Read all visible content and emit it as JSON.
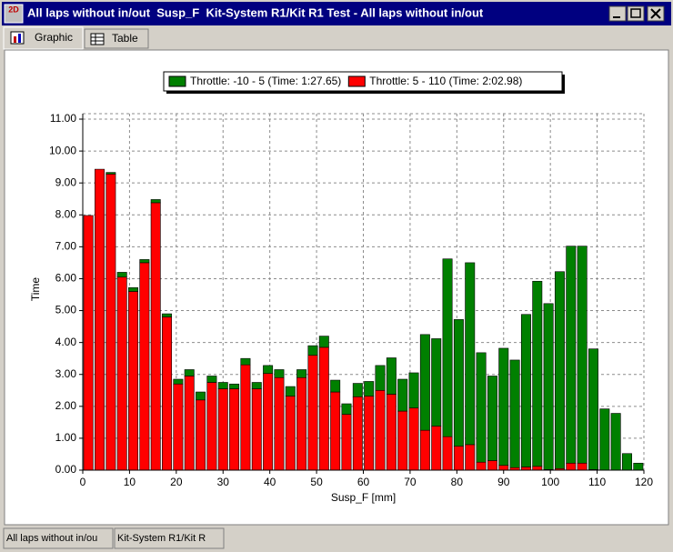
{
  "window": {
    "title": "All laps without in/out  Susp_F  Kit-System R1/Kit R1 Test - All laps without in/out",
    "tabs": [
      "Graphic",
      "Table"
    ],
    "status": [
      "All laps without in/ou",
      "Kit-System R1/Kit R"
    ]
  },
  "chart_data": {
    "type": "histogram",
    "stacked": true,
    "xlabel": "Susp_F [mm]",
    "ylabel": "Time",
    "bins": [
      0,
      2.4,
      4.8,
      7.2,
      9.6,
      12,
      14.4,
      16.8,
      19.2,
      21.6,
      24,
      26.4,
      28.8,
      31.2,
      33.6,
      36,
      38.4,
      40.8,
      43.2,
      45.6,
      48,
      50.4,
      52.8,
      55.2,
      57.6,
      60,
      62.4,
      64.8,
      67.2,
      69.6,
      72,
      74.4,
      76.8,
      79.2,
      81.6,
      84,
      86.4,
      88.8,
      91.2,
      93.6,
      96,
      98.4,
      100.8,
      103.2,
      105.6,
      108,
      110.4,
      112.8,
      115.2,
      117.6,
      120
    ],
    "series": [
      {
        "name": "Throttle: 5 - 110 (Time: 2:02.98)",
        "color": "#ff0000",
        "values": [
          7.98,
          9.43,
          9.28,
          6.05,
          5.6,
          6.5,
          8.38,
          4.8,
          2.7,
          2.95,
          2.2,
          2.75,
          2.55,
          2.55,
          3.3,
          2.55,
          3.03,
          2.9,
          2.32,
          2.9,
          3.6,
          3.85,
          2.45,
          1.75,
          2.3,
          2.32,
          2.5,
          2.38,
          1.85,
          1.95,
          1.25,
          1.38,
          1.05,
          0.75,
          0.8,
          0.25,
          0.3,
          0.15,
          0.08,
          0.1,
          0.12,
          0.02,
          0.05,
          0.22,
          0.22,
          0.02,
          0,
          0,
          0,
          0
        ]
      },
      {
        "name": "Throttle: -10 - 5 (Time: 1:27.65)",
        "color": "#008000",
        "values": [
          0,
          0,
          0.05,
          0.15,
          0.12,
          0.1,
          0.1,
          0.1,
          0.15,
          0.2,
          0.25,
          0.2,
          0.2,
          0.15,
          0.2,
          0.2,
          0.25,
          0.25,
          0.3,
          0.25,
          0.3,
          0.35,
          0.37,
          0.33,
          0.42,
          0.46,
          0.78,
          1.14,
          1.0,
          1.1,
          3.0,
          2.74,
          5.57,
          3.97,
          5.7,
          3.43,
          2.65,
          3.67,
          3.37,
          4.78,
          5.8,
          5.2,
          6.17,
          6.8,
          6.8,
          3.78,
          1.92,
          1.78,
          0.52,
          0.22
        ]
      }
    ],
    "legend_order": [
      1,
      0
    ],
    "xlim": [
      0,
      120
    ],
    "xticks": [
      0,
      10,
      20,
      30,
      40,
      50,
      60,
      70,
      80,
      90,
      100,
      110,
      120
    ],
    "ylim": [
      0,
      11
    ],
    "yticks": [
      {
        "value": 0,
        "label": "0.00"
      },
      {
        "value": 1,
        "label": "1.00"
      },
      {
        "value": 2,
        "label": "2.00"
      },
      {
        "value": 3,
        "label": "3.00"
      },
      {
        "value": 4,
        "label": "4.00"
      },
      {
        "value": 5,
        "label": "5.00"
      },
      {
        "value": 6,
        "label": "6.00"
      },
      {
        "value": 7,
        "label": "7.00"
      },
      {
        "value": 8,
        "label": "8.00"
      },
      {
        "value": 9,
        "label": "9.00"
      },
      {
        "value": 10,
        "label": "10.00"
      },
      {
        "value": 11,
        "label": "11.00"
      }
    ],
    "grid": true
  }
}
